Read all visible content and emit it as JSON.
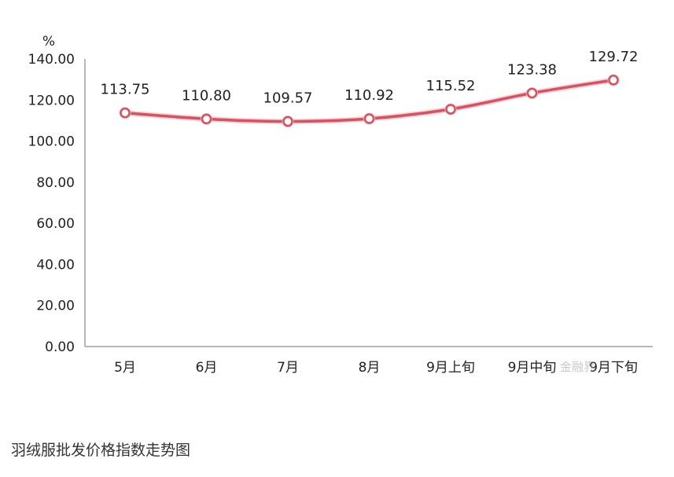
{
  "chart_data": {
    "type": "line",
    "categories": [
      "5月",
      "6月",
      "7月",
      "8月",
      "9月上旬",
      "9月中旬",
      "9月下旬"
    ],
    "values": [
      113.75,
      110.8,
      109.57,
      110.92,
      115.52,
      123.38,
      129.72
    ],
    "ylabel": "%",
    "ylim": [
      0,
      140
    ],
    "yticks": [
      "0.00",
      "20.00",
      "40.00",
      "60.00",
      "80.00",
      "100.00",
      "120.00",
      "140.00"
    ],
    "grid": false,
    "line_color": "#d9505f",
    "marker_fill": "#ffffff"
  },
  "caption": "羽绒服批发价格指数走势图",
  "watermark": "金融界"
}
